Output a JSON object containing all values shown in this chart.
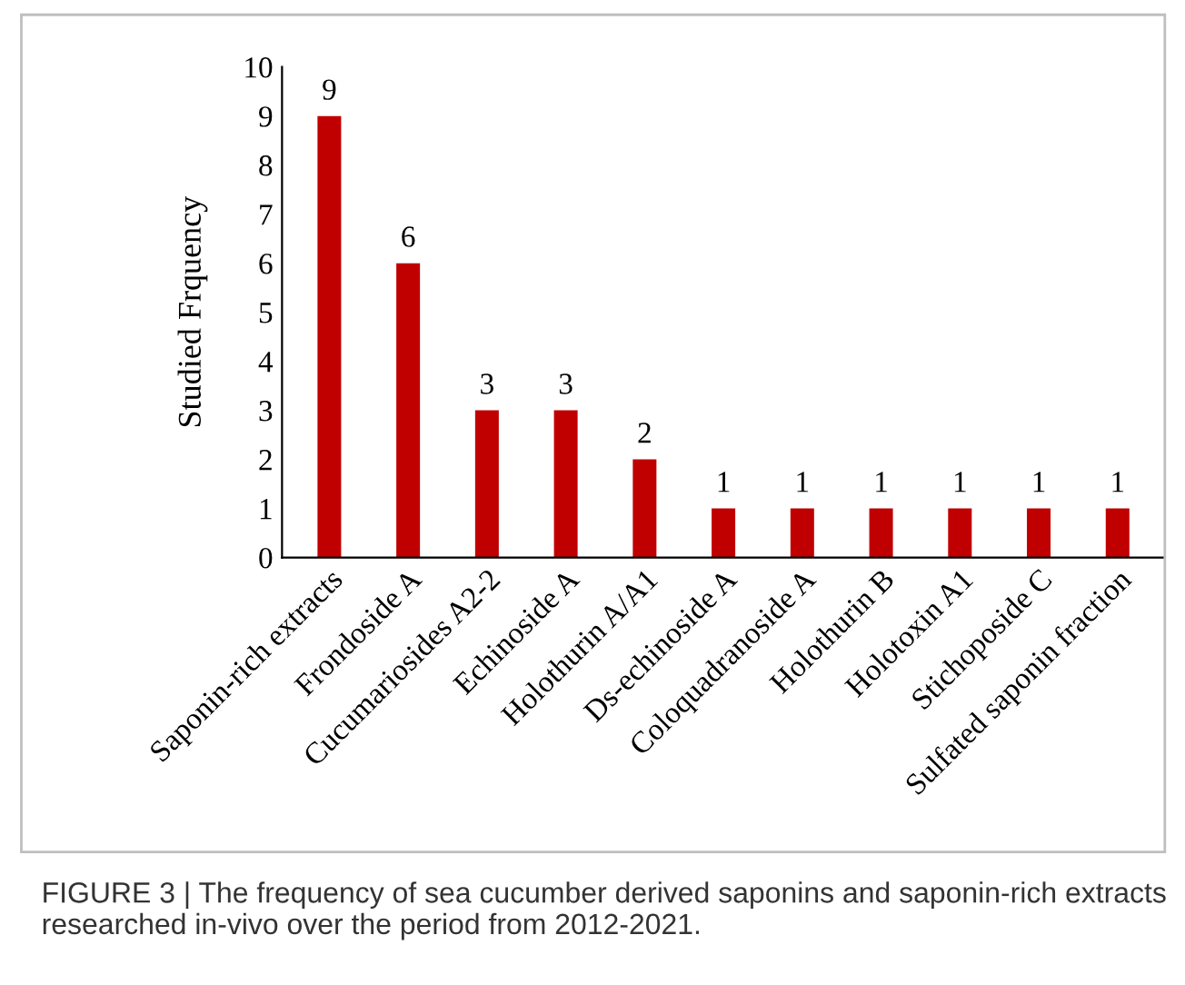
{
  "chart_data": {
    "type": "bar",
    "ylabel": "Studied Frquency",
    "categories": [
      "Saponin-rich extracts",
      "Frondoside A",
      "Cucumariosides A2-2",
      "Echinoside A",
      "Holothurin A/A1",
      "Ds-echinoside A",
      "Coloquadranoside A",
      "Holothurin B",
      "Holotoxin A1",
      "Stichoposide C",
      "Sulfated saponin fraction"
    ],
    "values": [
      9,
      6,
      3,
      3,
      2,
      1,
      1,
      1,
      1,
      1,
      1
    ],
    "color": "#c00000",
    "ylim": [
      0,
      10
    ],
    "yticks": [
      0,
      1,
      2,
      3,
      4,
      5,
      6,
      7,
      8,
      9,
      10
    ],
    "data_labels": true,
    "grid": false,
    "legend": false,
    "annotations": [
      "FIGURE 3 | The frequency of sea cucumber derived saponins and saponin-rich extracts researched in-vivo over the period from 2012-2021."
    ]
  }
}
